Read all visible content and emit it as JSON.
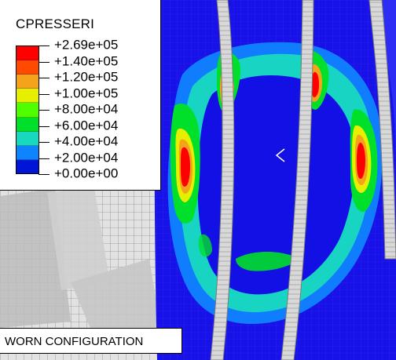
{
  "legend": {
    "title": "CPRESSERI",
    "levels": [
      {
        "label": "+2.69e+05",
        "color": "#ff0000"
      },
      {
        "label": "+1.40e+05",
        "color": "#ff4a00"
      },
      {
        "label": "+1.20e+05",
        "color": "#f5a31a"
      },
      {
        "label": "+1.00e+05",
        "color": "#e6ef00"
      },
      {
        "label": "+8.00e+04",
        "color": "#4fff00"
      },
      {
        "label": "+6.00e+04",
        "color": "#00e02a"
      },
      {
        "label": "+4.00e+04",
        "color": "#18d9c0"
      },
      {
        "label": "+2.00e+04",
        "color": "#0f84ff"
      },
      {
        "label": "+0.00e+00",
        "color": "#0015d6"
      }
    ]
  },
  "caption": {
    "text": "WORN CONFIGURATION"
  },
  "colors": {
    "model_background": "#1410e6",
    "mesh_gray": "#d6d6d6",
    "rib_gray": "#bdbdbd",
    "cursor": "#ffffff"
  },
  "icons": {
    "cursor": "chevron-left-icon"
  }
}
